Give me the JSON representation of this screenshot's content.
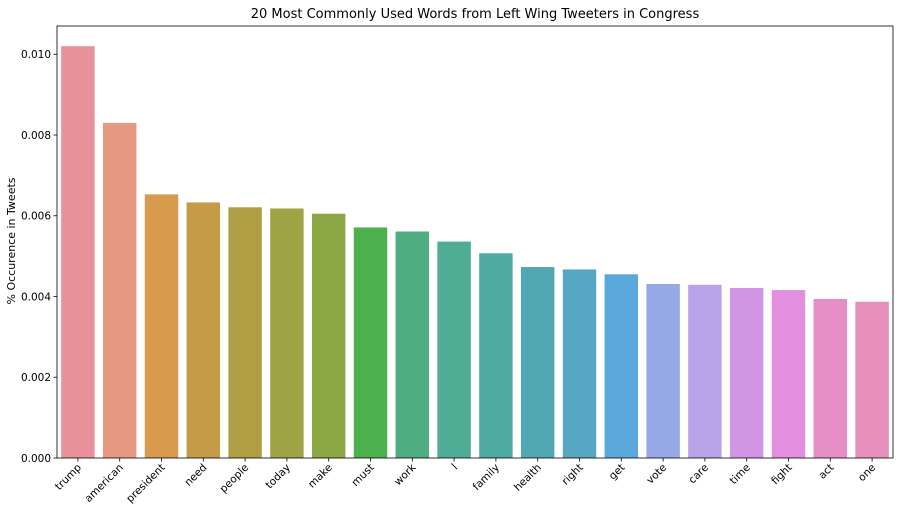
{
  "chart_data": {
    "type": "bar",
    "title": "20 Most Commonly Used Words from Left Wing Tweeters in Congress",
    "xlabel": "",
    "ylabel": "% Occurence in Tweets",
    "ylim": [
      0,
      0.0107
    ],
    "yticks": [
      "0.000",
      "0.002",
      "0.004",
      "0.006",
      "0.008",
      "0.010"
    ],
    "grid": false,
    "legend": "none",
    "categories": [
      "trump",
      "american",
      "president",
      "need",
      "people",
      "today",
      "make",
      "must",
      "work",
      "l",
      "family",
      "health",
      "right",
      "get",
      "vote",
      "care",
      "time",
      "fight",
      "act",
      "one"
    ],
    "values": [
      0.0102,
      0.0083,
      0.00653,
      0.00633,
      0.00621,
      0.00618,
      0.00605,
      0.00571,
      0.00561,
      0.00536,
      0.00507,
      0.00473,
      0.00467,
      0.00455,
      0.00431,
      0.00429,
      0.00421,
      0.00416,
      0.00394,
      0.00387
    ],
    "colors": [
      "#e8919a",
      "#e69881",
      "#d89a4c",
      "#c59b48",
      "#b09e45",
      "#9ea344",
      "#8ba844",
      "#4cb04c",
      "#4eae82",
      "#4fac95",
      "#50aaa4",
      "#52a8b2",
      "#55a7c2",
      "#5aa8dc",
      "#96a9e6",
      "#b8a3e8",
      "#d195e6",
      "#e48ee0",
      "#e58fc6",
      "#e68fba"
    ]
  }
}
